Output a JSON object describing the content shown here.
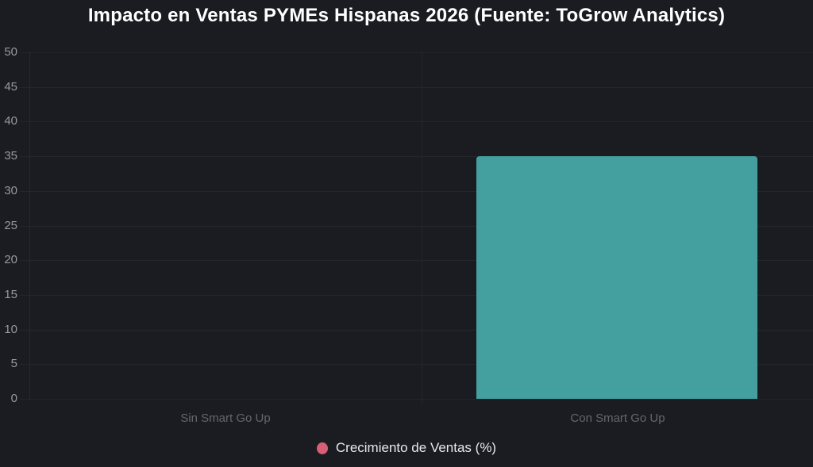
{
  "title": "Impacto en Ventas PYMEs Hispanas 2026 (Fuente: ToGrow Analytics)",
  "legend": {
    "label": "Crecimiento de Ventas (%)",
    "position": "bottom"
  },
  "colors": {
    "background": "#1a1c21",
    "bar_fill": "#43a09e",
    "legend_marker": "#d95f76",
    "grid_line": "#24262b",
    "axis_line": "#282a30",
    "title_text": "#ffffff",
    "y_tick_text": "#96999e",
    "x_tick_text": "#63676d",
    "legend_text": "#e8e8ea"
  },
  "chart_data": {
    "type": "bar",
    "title": "Impacto en Ventas PYMEs Hispanas 2026 (Fuente: ToGrow Analytics)",
    "categories": [
      "Sin Smart Go Up",
      "Con Smart Go Up"
    ],
    "series": [
      {
        "name": "Crecimiento de Ventas (%)",
        "values": [
          0,
          35
        ],
        "color": "#43a09e"
      }
    ],
    "xlabel": "",
    "ylabel": "",
    "ylim": [
      0,
      50
    ],
    "yticks": [
      0,
      5,
      10,
      15,
      20,
      25,
      30,
      35,
      40,
      45,
      50
    ],
    "grid": true,
    "legend_position": "bottom"
  }
}
